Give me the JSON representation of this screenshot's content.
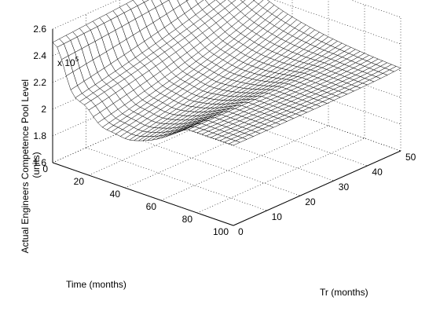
{
  "chart_data": {
    "type": "surface",
    "title": "",
    "zlabel_line1": "Actual Engineers Competence Pool Level",
    "zlabel_line2": "(units)",
    "xlabel": "Time (months)",
    "ylabel": "Tr (months)",
    "z_multiplier": "x 10",
    "z_exponent": "5",
    "xlim": [
      0,
      100
    ],
    "ylim": [
      0,
      50
    ],
    "zlim": [
      1.6,
      2.6
    ],
    "x_ticks": [
      "0",
      "20",
      "40",
      "60",
      "80",
      "100"
    ],
    "y_ticks": [
      "0",
      "10",
      "20",
      "30",
      "40",
      "50"
    ],
    "z_ticks": [
      "1.6",
      "1.8",
      "2",
      "2.2",
      "2.4",
      "2.6"
    ],
    "grid": true,
    "surface": {
      "description_points": [
        {
          "time": 0,
          "tr": 0,
          "value": 2.5
        },
        {
          "time": 0,
          "tr": 50,
          "value": 2.6
        },
        {
          "time": 10,
          "tr": 0,
          "value": 2.28
        },
        {
          "time": 30,
          "tr": 0,
          "value": 2.05
        },
        {
          "time": 100,
          "tr": 0,
          "value": 2.18
        },
        {
          "time": 100,
          "tr": 50,
          "value": 2.2
        }
      ]
    }
  }
}
